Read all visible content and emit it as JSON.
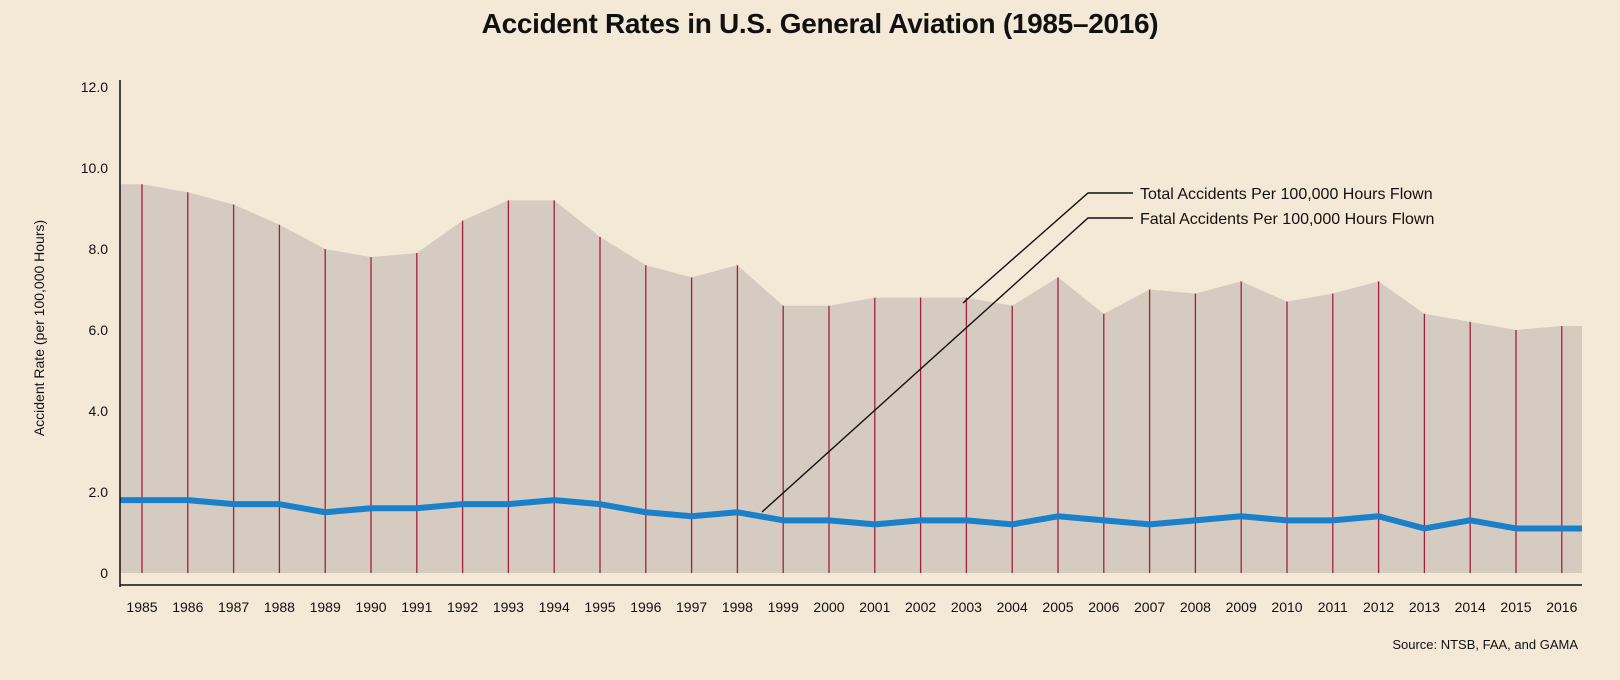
{
  "chart_data": {
    "type": "area",
    "title": "Accident Rates in U.S. General Aviation (1985–2016)",
    "ylabel": "Accident Rate (per 100,000 Hours)",
    "xlabel": "",
    "ylim": [
      0,
      12
    ],
    "yticks": [
      "0",
      "2.0",
      "4.0",
      "6.0",
      "8.0",
      "10.0",
      "12.0"
    ],
    "categories": [
      "1985",
      "1986",
      "1987",
      "1988",
      "1989",
      "1990",
      "1991",
      "1992",
      "1993",
      "1994",
      "1995",
      "1996",
      "1997",
      "1998",
      "1999",
      "2000",
      "2001",
      "2002",
      "2003",
      "2004",
      "2005",
      "2006",
      "2007",
      "2008",
      "2009",
      "2010",
      "2011",
      "2012",
      "2013",
      "2014",
      "2015",
      "2016"
    ],
    "series": [
      {
        "name": "Total Accidents Per 100,000 Hours Flown",
        "style": "filled-area",
        "color": "#d6cbc0",
        "values": [
          9.6,
          9.4,
          9.1,
          8.6,
          8.0,
          7.8,
          7.9,
          8.7,
          9.2,
          9.2,
          8.3,
          7.6,
          7.3,
          7.6,
          6.6,
          6.6,
          6.8,
          6.8,
          6.8,
          6.6,
          7.3,
          6.4,
          7.0,
          6.9,
          7.2,
          6.7,
          6.9,
          7.2,
          6.4,
          6.2,
          6.0,
          6.1
        ]
      },
      {
        "name": "Fatal Accidents Per 100,000 Hours Flown",
        "style": "line",
        "color": "#1a80c9",
        "values": [
          1.8,
          1.8,
          1.7,
          1.7,
          1.5,
          1.6,
          1.6,
          1.7,
          1.7,
          1.8,
          1.7,
          1.5,
          1.4,
          1.5,
          1.3,
          1.3,
          1.2,
          1.3,
          1.3,
          1.2,
          1.4,
          1.3,
          1.2,
          1.3,
          1.4,
          1.3,
          1.3,
          1.4,
          1.1,
          1.3,
          1.1,
          1.1
        ]
      }
    ],
    "drop_line_color": "#a32038",
    "legend": "callouts"
  },
  "source": "Source: NTSB, FAA, and GAMA"
}
